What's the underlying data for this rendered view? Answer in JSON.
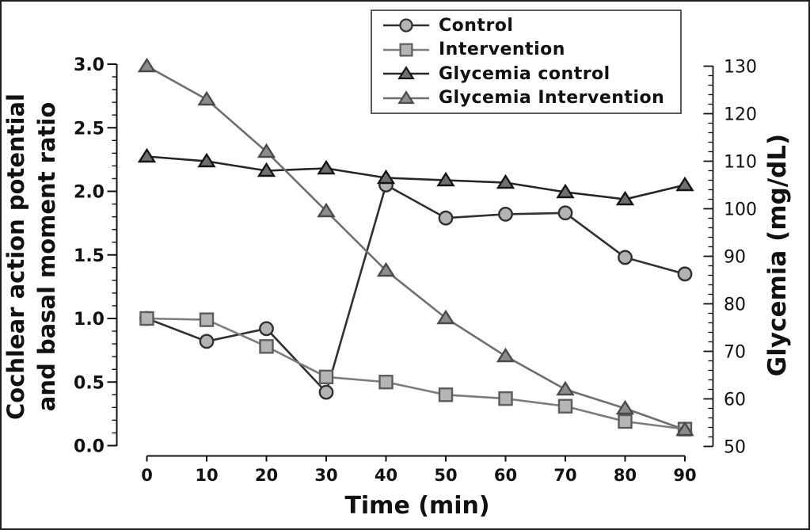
{
  "figure": {
    "axes": {
      "left": {
        "title_line1": "Cochlear action potential",
        "title_line2": "and basal moment ratio",
        "ticks": [
          "0.0",
          "0.5",
          "1.0",
          "1.5",
          "2.0",
          "2.5",
          "3.0"
        ],
        "minor_step": 0.1,
        "range": [
          0.0,
          3.0
        ]
      },
      "right": {
        "title": "Glycemia (mg/dL)",
        "ticks": [
          "50",
          "60",
          "70",
          "80",
          "90",
          "100",
          "110",
          "120",
          "130"
        ],
        "minor_step": 2,
        "range": [
          50,
          130
        ]
      },
      "x": {
        "title": "Time (min)",
        "ticks": [
          "0",
          "10",
          "20",
          "30",
          "40",
          "50",
          "60",
          "70",
          "80",
          "90"
        ],
        "range": [
          0,
          90
        ]
      }
    },
    "legend": {
      "position": "top-center",
      "items": [
        "Control",
        "Intervention",
        "Glycemia control",
        "Glycemia Intervention"
      ]
    },
    "colors": {
      "axis": "#111111",
      "background": "#ffffff",
      "frame_border": "#1f1f1f",
      "legend_border": "#5a5a5a"
    }
  },
  "chart_data": {
    "type": "line",
    "title": "",
    "xlabel": "Time (min)",
    "ylabel_left": "Cochlear action potential and basal moment ratio",
    "ylabel_right": "Glycemia (mg/dL)",
    "x": [
      0,
      10,
      20,
      30,
      40,
      50,
      60,
      70,
      80,
      90
    ],
    "ylim_left": [
      0.0,
      3.0
    ],
    "ylim_right": [
      50,
      130
    ],
    "grid": false,
    "series": [
      {
        "name": "Control",
        "axis": "left",
        "marker": "circle",
        "line_color": "#303030",
        "marker_fill": "#b3b3b3",
        "marker_stroke": "#303030",
        "values": [
          1.0,
          0.82,
          0.92,
          0.42,
          2.05,
          1.79,
          1.82,
          1.83,
          1.48,
          1.35
        ]
      },
      {
        "name": "Intervention",
        "axis": "left",
        "marker": "square",
        "line_color": "#7d7d7d",
        "marker_fill": "#b5b5b5",
        "marker_stroke": "#5c5c5c",
        "values": [
          1.0,
          0.99,
          0.78,
          0.54,
          0.5,
          0.4,
          0.37,
          0.31,
          0.19,
          0.13
        ]
      },
      {
        "name": "Glycemia control",
        "axis": "right",
        "marker": "triangle",
        "line_color": "#262626",
        "marker_fill": "#6f6f6f",
        "marker_stroke": "#161616",
        "values": [
          111,
          110,
          108,
          108.5,
          106.5,
          106,
          105.5,
          103.5,
          102,
          105
        ]
      },
      {
        "name": "Glycemia Intervention",
        "axis": "right",
        "marker": "triangle",
        "line_color": "#6f6f6f",
        "marker_fill": "#8c8c8c",
        "marker_stroke": "#4a4a4a",
        "values": [
          130,
          123,
          112,
          99.5,
          87,
          77,
          69,
          62,
          58,
          53.5
        ]
      }
    ]
  }
}
